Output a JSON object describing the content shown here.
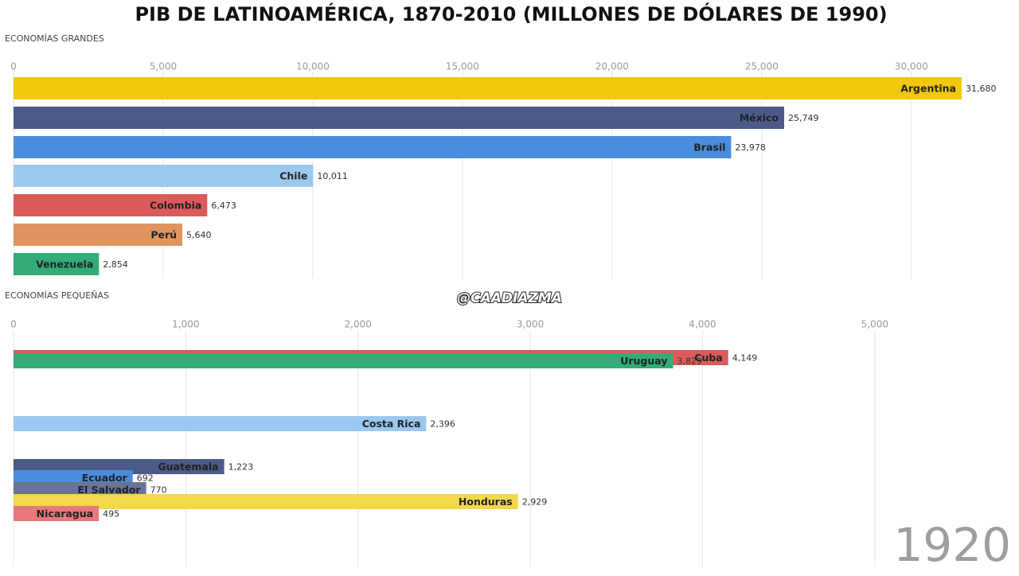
{
  "title": "PIB DE LATINOAMÉRICA, 1870-2010 (MILLONES DE DÓLARES DE 1990)",
  "watermark": "@CAADIAZMA",
  "year": "1920",
  "chart_data": [
    {
      "type": "bar",
      "orientation": "horizontal",
      "title": "ECONOMÍAS GRANDES",
      "categories": [
        "Argentina",
        "México",
        "Brasil",
        "Chile",
        "Colombia",
        "Perú",
        "Venezuela"
      ],
      "values": [
        31680,
        25749,
        23978,
        10011,
        6473,
        5640,
        2854
      ],
      "value_labels": [
        "31,680",
        "25,749",
        "23,978",
        "10,011",
        "6,473",
        "5,640",
        "2,854"
      ],
      "colors": [
        "#f2c80f",
        "#4c5a88",
        "#4a8ddc",
        "#9bc8ef",
        "#dd5a5a",
        "#e09460",
        "#33ac78"
      ],
      "xlim": [
        0,
        32000
      ],
      "xticks": [
        0,
        {
          "value": 5000,
          "label": "5,000"
        },
        {
          "value": 10000,
          "label": "10,000"
        },
        {
          "value": 15000,
          "label": "15,000"
        },
        {
          "value": 20000,
          "label": "20,000"
        },
        {
          "value": 25000,
          "label": "25,000"
        },
        {
          "value": 30000,
          "label": "30,000"
        }
      ],
      "grid": true
    },
    {
      "type": "bar",
      "orientation": "horizontal",
      "title": "ECONOMÍAS PEQUEÑAS",
      "categories": [
        "Cuba",
        "Uruguay",
        "Costa Rica",
        "Guatemala",
        "Ecuador",
        "El Salvador",
        "Honduras",
        "Nicaragua"
      ],
      "values": [
        4149,
        3829,
        2396,
        1223,
        692,
        770,
        2929,
        495
      ],
      "value_labels": [
        "4,149",
        "3,829",
        "2,396",
        "1,223",
        "692",
        "770",
        "2,929",
        "495"
      ],
      "colors": [
        "#dd5a5a",
        "#33ac78",
        "#9bc8ef",
        "#4c5a88",
        "#4a8ddc",
        "#6b7590",
        "#f2d84a",
        "#e8787a"
      ],
      "xlim": [
        0,
        5560
      ],
      "xticks": [
        0,
        {
          "value": 1000,
          "label": "1,000"
        },
        {
          "value": 2000,
          "label": "2,000"
        },
        {
          "value": 3000,
          "label": "3,000"
        },
        {
          "value": 4000,
          "label": "4,000"
        },
        {
          "value": 5000,
          "label": "5,000"
        }
      ],
      "grid": true
    }
  ]
}
